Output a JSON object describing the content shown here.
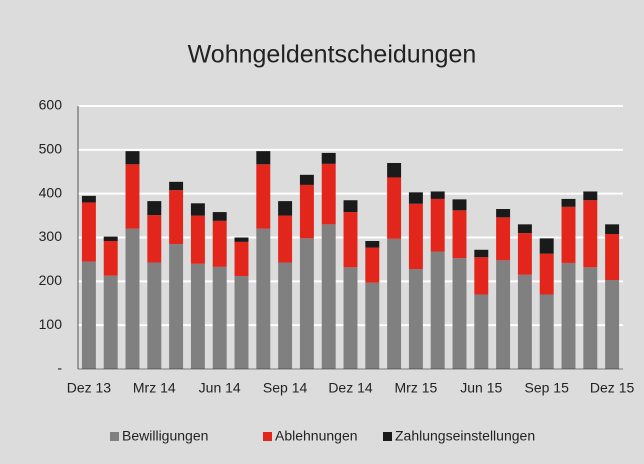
{
  "chart_data": {
    "type": "stacked_bar",
    "title": "Wohngeldentscheidungen",
    "categories": [
      "Dez 13",
      null,
      null,
      "Mrz 14",
      null,
      null,
      "Jun 14",
      null,
      null,
      "Sep 14",
      null,
      null,
      "Dez 14",
      null,
      null,
      "Mrz 15",
      null,
      null,
      "Jun 15",
      null,
      null,
      "Sep 15",
      null,
      null,
      "Dez 15"
    ],
    "series": [
      {
        "name": "Bewilligungen",
        "color": "#808080",
        "values": [
          245,
          213,
          320,
          243,
          285,
          240,
          233,
          212,
          320,
          243,
          298,
          330,
          232,
          197,
          297,
          228,
          268,
          253,
          170,
          248,
          215,
          170,
          242,
          232,
          203
        ]
      },
      {
        "name": "Ablehnungen",
        "color": "#e3261b",
        "values": [
          135,
          79,
          147,
          108,
          123,
          110,
          105,
          78,
          147,
          107,
          122,
          138,
          126,
          80,
          140,
          149,
          120,
          109,
          85,
          98,
          95,
          93,
          128,
          153,
          105
        ]
      },
      {
        "name": "Zahlungseinstellungen",
        "color": "#1a1a1a",
        "values": [
          15,
          10,
          30,
          32,
          19,
          28,
          20,
          10,
          30,
          33,
          23,
          25,
          27,
          15,
          33,
          26,
          17,
          25,
          17,
          19,
          20,
          35,
          18,
          20,
          22
        ]
      }
    ],
    "ylim": [
      0,
      600
    ],
    "yticks": [
      {
        "value": 0,
        "label": "-"
      },
      100,
      200,
      300,
      400,
      500,
      600
    ],
    "grid": true,
    "legend": "bottom"
  }
}
